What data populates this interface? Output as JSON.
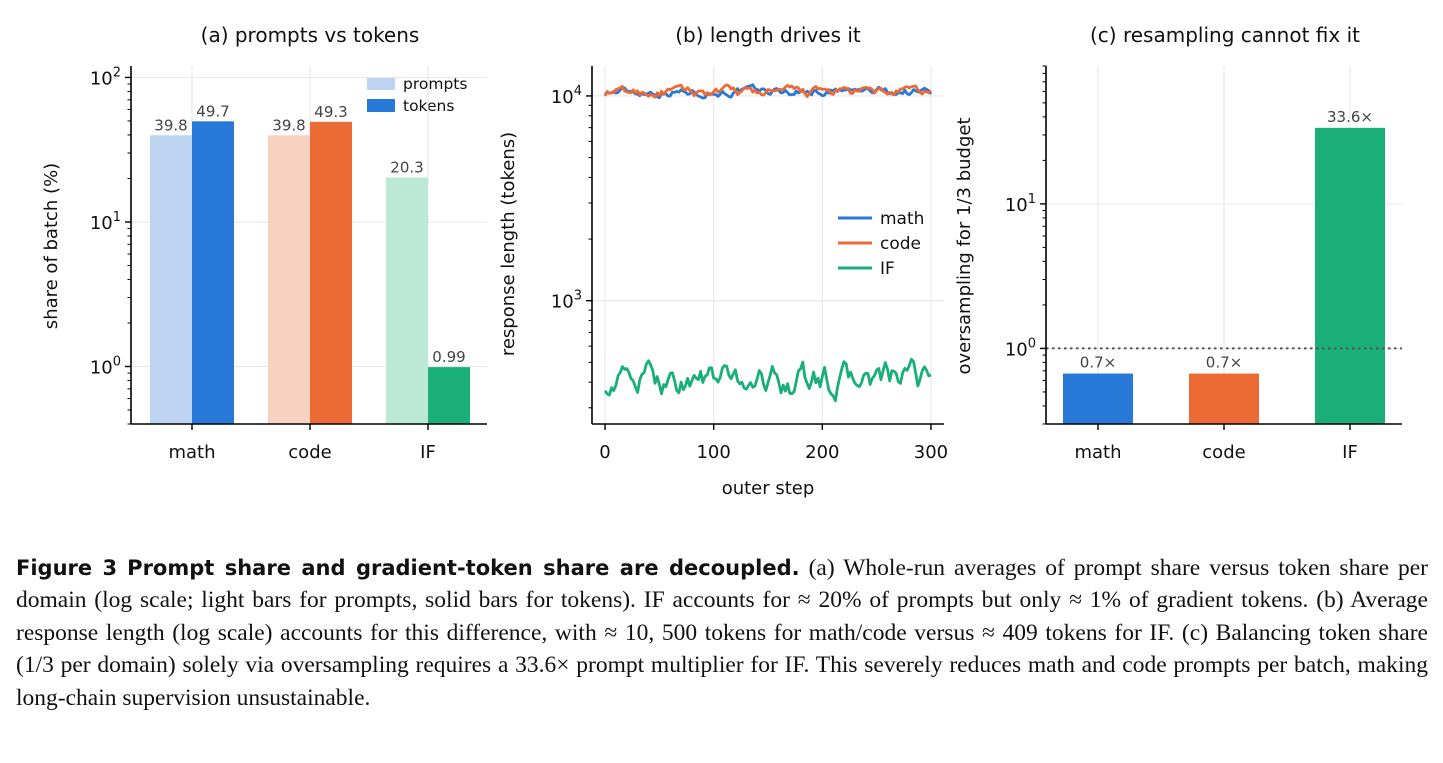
{
  "colors": {
    "math": "#2878d8",
    "code": "#ec6a36",
    "IF": "#1aae78",
    "math_light": "#bcd4f2",
    "code_light": "#f8d2c0",
    "IF_light": "#bce8d6",
    "grid": "#e6e6e6",
    "axis": "#000000",
    "label": "#444444"
  },
  "chart_data": [
    {
      "type": "bar",
      "title": "(a) prompts vs tokens",
      "xlabel": "",
      "ylabel": "share of batch (%)",
      "yscale": "log",
      "ylim": [
        0.4,
        120
      ],
      "yticks": [
        {
          "value": 1,
          "label": "10⁰"
        },
        {
          "value": 10,
          "label": "10¹"
        },
        {
          "value": 100,
          "label": "10²"
        }
      ],
      "categories": [
        "math",
        "code",
        "IF"
      ],
      "series": [
        {
          "name": "prompts",
          "style": "light",
          "values": [
            39.8,
            39.8,
            20.3
          ],
          "labels": [
            "39.8",
            "39.8",
            "20.3"
          ]
        },
        {
          "name": "tokens",
          "style": "solid",
          "values": [
            49.7,
            49.3,
            0.99
          ],
          "labels": [
            "49.7",
            "49.3",
            "0.99"
          ]
        }
      ],
      "legend": "top-right",
      "grid": true
    },
    {
      "type": "line",
      "title": "(b) length drives it",
      "xlabel": "outer step",
      "ylabel": "response length (tokens)",
      "yscale": "log",
      "xlim": [
        -12,
        312
      ],
      "ylim": [
        250,
        14000
      ],
      "xticks": [
        0,
        100,
        200,
        300
      ],
      "yticks": [
        {
          "value": 1000,
          "label": "10³"
        },
        {
          "value": 10000,
          "label": "10⁴"
        }
      ],
      "series": [
        {
          "name": "math",
          "mean": 10500,
          "amp": 0.035
        },
        {
          "name": "code",
          "mean": 10400,
          "amp": 0.04
        },
        {
          "name": "IF",
          "mean": 409,
          "amp": 0.12
        }
      ],
      "legend": "center-right",
      "grid": true
    },
    {
      "type": "bar",
      "title": "(c) resampling cannot fix it",
      "xlabel": "",
      "ylabel": "oversampling for 1/3 budget",
      "yscale": "log",
      "ylim": [
        0.3,
        90
      ],
      "yticks": [
        {
          "value": 1,
          "label": "10⁰"
        },
        {
          "value": 10,
          "label": "10¹"
        }
      ],
      "categories": [
        "math",
        "code",
        "IF"
      ],
      "values": [
        0.67,
        0.67,
        33.6
      ],
      "labels": [
        "0.7×",
        "0.7×",
        "33.6×"
      ],
      "reference_line": 1,
      "grid": true
    }
  ],
  "caption": {
    "figure_label": "Figure 3",
    "heading": "Prompt share and gradient-token share are decoupled.",
    "body": "(a) Whole-run averages of prompt share versus token share per domain (log scale; light bars for prompts, solid bars for tokens). IF accounts for ≈ 20% of prompts but only ≈ 1% of gradient tokens. (b) Average response length (log scale) accounts for this difference, with ≈ 10, 500 tokens for math/code versus ≈ 409 tokens for IF. (c) Balancing token share (1/3 per domain) solely via oversampling requires a 33.6× prompt multiplier for IF. This severely reduces math and code prompts per batch, making long-chain supervision unsustainable."
  }
}
